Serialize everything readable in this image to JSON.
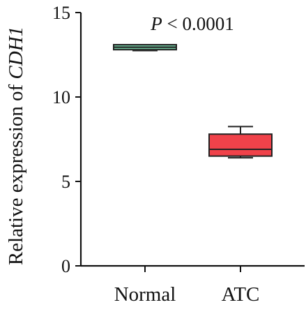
{
  "chart_data": {
    "type": "box",
    "title": "",
    "xlabel": "",
    "ylabel": {
      "prefix": "Relative expression of ",
      "gene": "CDH1"
    },
    "ylim": [
      0,
      15
    ],
    "yticks": [
      "0",
      "5",
      "10",
      "15"
    ],
    "grid": false,
    "legend": "none",
    "annotation": {
      "italic_part": "P",
      "rest": " < 0.0001"
    },
    "categories": [
      "Normal",
      "ATC"
    ],
    "boxes": [
      {
        "category": "Normal",
        "min": 12.75,
        "q1": 12.8,
        "median": 12.95,
        "q3": 13.1,
        "max": 13.1,
        "color": "#6fbf9a"
      },
      {
        "category": "ATC",
        "min": 6.4,
        "q1": 6.5,
        "median": 6.9,
        "q3": 7.8,
        "max": 8.25,
        "color": "#f0424a"
      }
    ]
  }
}
